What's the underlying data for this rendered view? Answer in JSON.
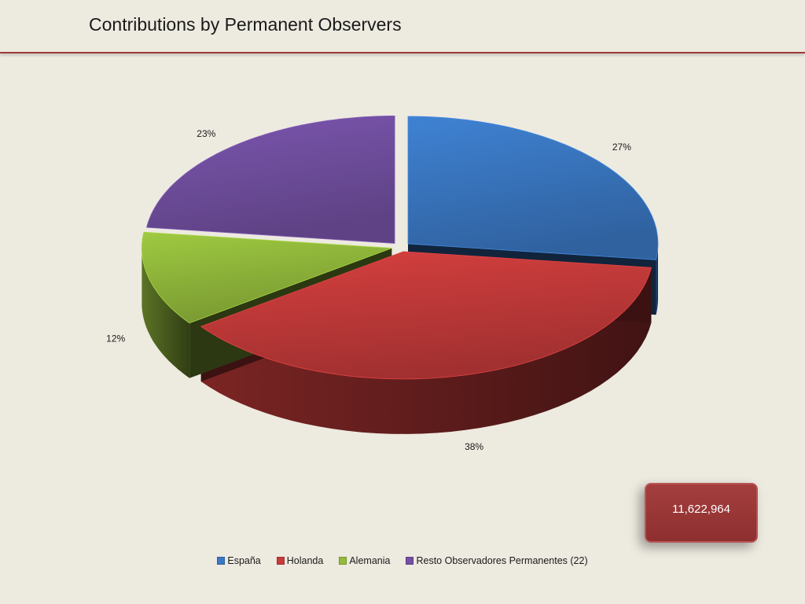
{
  "title": "Contributions by Permanent Observers",
  "total_box": {
    "value": "11,622,964"
  },
  "chart_data": {
    "type": "pie",
    "title": "Contributions by Permanent Observers",
    "slices": [
      {
        "name": "España",
        "value": 27,
        "label": "27%",
        "color": "#3a78c3"
      },
      {
        "name": "Holanda",
        "value": 38,
        "label": "38%",
        "color": "#c63b3a"
      },
      {
        "name": "Alemania",
        "value": 12,
        "label": "12%",
        "color": "#93bb3c"
      },
      {
        "name": "Resto Observadores Permanentes (22)",
        "value": 23,
        "label": "23%",
        "color": "#7350a2"
      }
    ],
    "legend_position": "bottom"
  }
}
